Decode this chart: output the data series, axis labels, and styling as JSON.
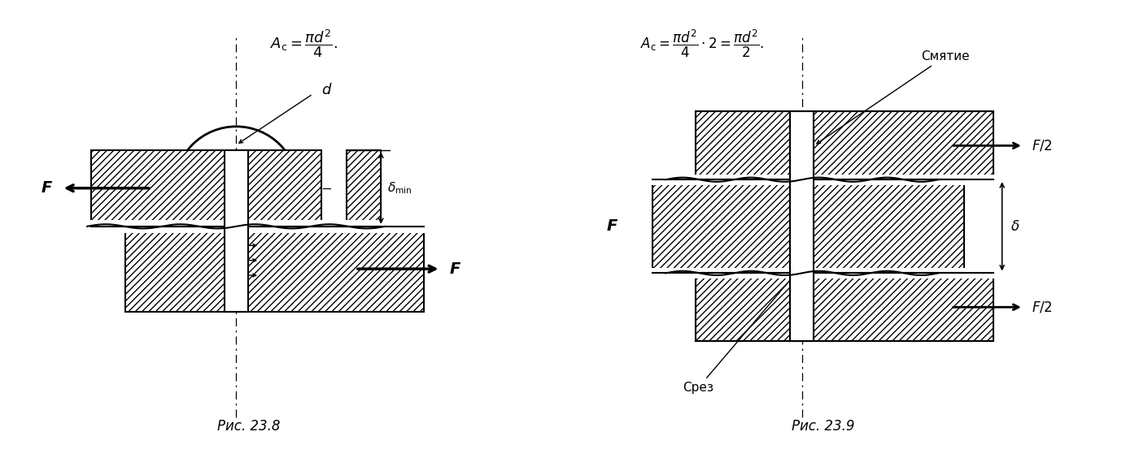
{
  "fig_width": 13.84,
  "fig_height": 5.69,
  "bg_color": "#ffffff",
  "fig1_caption": "Рис. 23.8",
  "fig2_caption": "Рис. 23.9"
}
